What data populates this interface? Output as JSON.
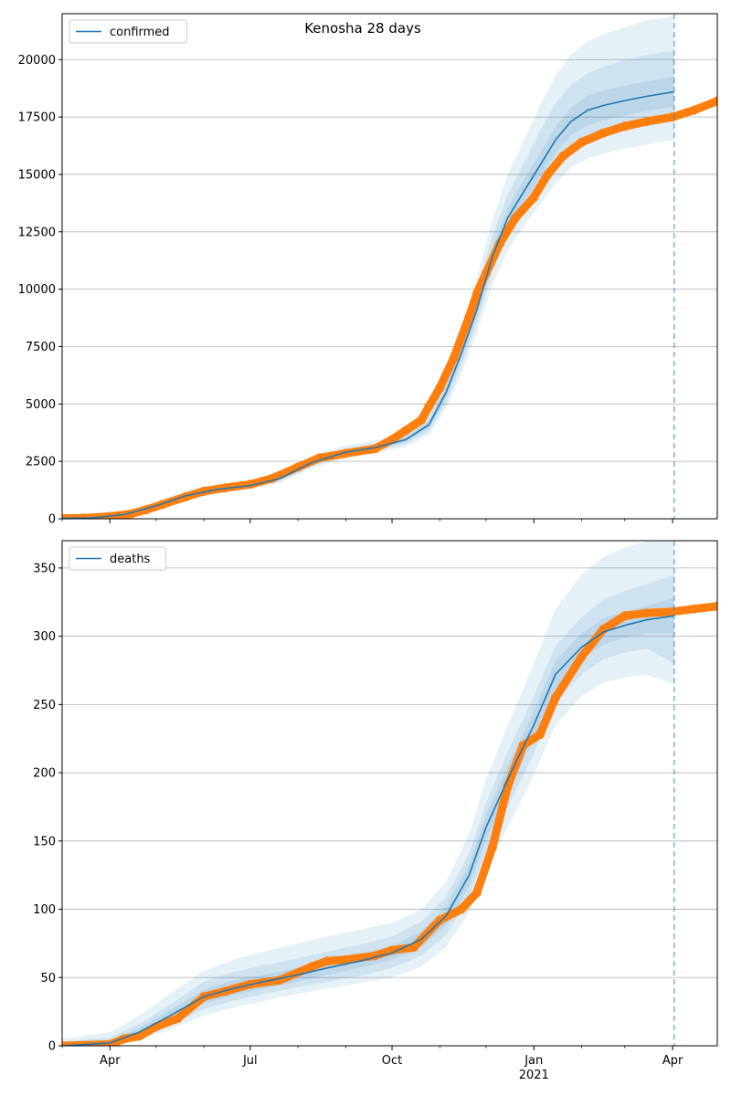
{
  "title": "Kenosha 28 days",
  "colors": {
    "model": "#1f77b4",
    "observed": "#ff7f0e",
    "band": "#1f77b4",
    "grid": "#b0b0b0",
    "forecast_line": "#1f77b4"
  },
  "chart_data": [
    {
      "type": "line",
      "legend": "confirmed",
      "legend_position": "top-left",
      "grid": "horizontal",
      "xlim": [
        "2020-03-01",
        "2021-04-30"
      ],
      "ylim": [
        0,
        22000
      ],
      "yticks": [
        0,
        2500,
        5000,
        7500,
        10000,
        12500,
        15000,
        17500,
        20000
      ],
      "forecast_start": "2021-04-02",
      "model": {
        "dates": [
          "2020-03-01",
          "2020-03-20",
          "2020-04-10",
          "2020-05-01",
          "2020-05-20",
          "2020-06-10",
          "2020-07-01",
          "2020-07-20",
          "2020-08-10",
          "2020-09-01",
          "2020-09-20",
          "2020-10-10",
          "2020-10-25",
          "2020-11-05",
          "2020-11-15",
          "2020-11-25",
          "2020-12-05",
          "2020-12-15",
          "2020-12-25",
          "2021-01-05",
          "2021-01-15",
          "2021-01-25",
          "2021-02-05",
          "2021-02-15",
          "2021-02-28",
          "2021-03-15",
          "2021-04-02"
        ],
        "values": [
          20,
          40,
          180,
          560,
          1000,
          1280,
          1450,
          1750,
          2450,
          2900,
          3100,
          3450,
          4100,
          5500,
          7200,
          9100,
          11400,
          13100,
          14200,
          15400,
          16500,
          17300,
          17800,
          18000,
          18200,
          18400,
          18600
        ],
        "bands": [
          {
            "lower": [
              0,
              10,
              100,
              400,
              800,
              1100,
              1300,
              1550,
              2200,
              2650,
              2850,
              3150,
              3650,
              4800,
              6300,
              8100,
              10200,
              11700,
              12700,
              13700,
              14600,
              15300,
              15700,
              15900,
              16100,
              16300,
              16500
            ],
            "upper": [
              60,
              100,
              300,
              750,
              1250,
              1500,
              1650,
              2000,
              2750,
              3200,
              3400,
              3800,
              4600,
              6300,
              8300,
              10500,
              13000,
              15000,
              16400,
              18000,
              19300,
              20200,
              20800,
              21100,
              21400,
              21700,
              21900
            ]
          },
          {
            "lower": [
              0,
              20,
              130,
              460,
              870,
              1170,
              1350,
              1630,
              2300,
              2740,
              2940,
              3270,
              3820,
              5050,
              6650,
              8500,
              10700,
              12300,
              13300,
              14400,
              15400,
              16100,
              16500,
              16700,
              16900,
              17100,
              17300
            ],
            "upper": [
              45,
              75,
              250,
              670,
              1150,
              1420,
              1580,
              1900,
              2630,
              3080,
              3280,
              3650,
              4400,
              5950,
              7800,
              9900,
              12300,
              14100,
              15400,
              16900,
              18100,
              18900,
              19400,
              19700,
              19950,
              20200,
              20400
            ]
          },
          {
            "lower": [
              5,
              30,
              155,
              510,
              930,
              1220,
              1400,
              1690,
              2380,
              2830,
              3020,
              3360,
              3960,
              5280,
              6920,
              8800,
              11050,
              12700,
              13750,
              14900,
              15950,
              16700,
              17150,
              17350,
              17550,
              17750,
              17950
            ],
            "upper": [
              35,
              55,
              210,
              610,
              1070,
              1350,
              1510,
              1820,
              2530,
              2980,
              3180,
              3550,
              4250,
              5750,
              7500,
              9450,
              11800,
              13550,
              14700,
              15950,
              17050,
              17900,
              18450,
              18650,
              18850,
              19050,
              19250
            ]
          }
        ]
      },
      "observed": {
        "dates": [
          "2020-03-01",
          "2020-03-15",
          "2020-04-01",
          "2020-04-15",
          "2020-04-25",
          "2020-05-05",
          "2020-05-20",
          "2020-06-01",
          "2020-06-15",
          "2020-07-01",
          "2020-07-15",
          "2020-08-01",
          "2020-08-15",
          "2020-09-01",
          "2020-09-20",
          "2020-10-01",
          "2020-10-10",
          "2020-10-20",
          "2020-10-25",
          "2020-11-01",
          "2020-11-10",
          "2020-11-20",
          "2020-11-25",
          "2020-12-01",
          "2020-12-10",
          "2020-12-20",
          "2021-01-01",
          "2021-01-10",
          "2021-01-20",
          "2021-02-01",
          "2021-02-15",
          "2021-03-01",
          "2021-03-15",
          "2021-04-01",
          "2021-04-15",
          "2021-04-30"
        ],
        "values": [
          20,
          30,
          100,
          220,
          400,
          620,
          950,
          1200,
          1350,
          1500,
          1750,
          2250,
          2650,
          2850,
          3050,
          3450,
          3850,
          4300,
          4900,
          5700,
          7000,
          8800,
          9800,
          10700,
          12000,
          13100,
          14000,
          15000,
          15800,
          16400,
          16800,
          17100,
          17300,
          17500,
          17800,
          18200
        ]
      }
    },
    {
      "type": "line",
      "legend": "deaths",
      "legend_position": "top-left",
      "grid": "horizontal",
      "xlim": [
        "2020-03-01",
        "2021-04-30"
      ],
      "ylim": [
        0,
        370
      ],
      "yticks": [
        0,
        50,
        100,
        150,
        200,
        250,
        300,
        350
      ],
      "xticks": [
        {
          "date": "2020-04-01",
          "label": "Apr"
        },
        {
          "date": "2020-07-01",
          "label": "Jul"
        },
        {
          "date": "2020-10-01",
          "label": "Oct"
        },
        {
          "date": "2021-01-01",
          "label": "Jan",
          "sublabel": "2021"
        },
        {
          "date": "2021-04-01",
          "label": "Apr"
        }
      ],
      "forecast_start": "2021-04-02",
      "model": {
        "dates": [
          "2020-03-01",
          "2020-04-01",
          "2020-04-20",
          "2020-05-10",
          "2020-06-01",
          "2020-06-20",
          "2020-07-10",
          "2020-08-01",
          "2020-08-20",
          "2020-09-10",
          "2020-10-01",
          "2020-10-20",
          "2020-11-05",
          "2020-11-20",
          "2020-12-01",
          "2020-12-15",
          "2021-01-01",
          "2021-01-15",
          "2021-02-01",
          "2021-02-15",
          "2021-03-01",
          "2021-03-15",
          "2021-04-02"
        ],
        "values": [
          0,
          2,
          10,
          22,
          36,
          42,
          47,
          52,
          57,
          62,
          68,
          78,
          95,
          125,
          160,
          195,
          235,
          272,
          292,
          303,
          308,
          312,
          315
        ],
        "bands": [
          {
            "lower": [
              0,
              0,
              4,
              12,
              22,
              28,
              33,
              38,
              42,
              46,
              50,
              58,
              72,
              98,
              128,
              160,
              198,
              235,
              256,
              266,
              270,
              272,
              265
            ],
            "upper": [
              5,
              10,
              22,
              38,
              55,
              63,
              69,
              75,
              80,
              85,
              90,
              100,
              120,
              155,
              195,
              235,
              280,
              320,
              345,
              358,
              365,
              370,
              370
            ]
          },
          {
            "lower": [
              0,
              1,
              6,
              15,
              27,
              33,
              38,
              43,
              47,
              51,
              57,
              66,
              81,
              109,
              142,
              175,
              214,
              252,
              272,
              283,
              288,
              291,
              280
            ],
            "upper": [
              3,
              6,
              16,
              30,
              47,
              54,
              59,
              64,
              69,
              74,
              80,
              91,
              109,
              141,
              178,
              215,
              256,
              293,
              314,
              327,
              333,
              338,
              345
            ]
          },
          {
            "lower": [
              0,
              1,
              8,
              18,
              31,
              37,
              42,
              47,
              52,
              57,
              63,
              72,
              88,
              117,
              151,
              185,
              225,
              262,
              283,
              294,
              299,
              302,
              302
            ],
            "upper": [
              2,
              4,
              13,
              26,
              41,
              48,
              52,
              57,
              62,
              67,
              73,
              84,
              102,
              133,
              169,
              205,
              245,
              282,
              302,
              313,
              318,
              322,
              328
            ]
          }
        ]
      },
      "observed": {
        "dates": [
          "2020-03-01",
          "2020-04-01",
          "2020-04-10",
          "2020-04-20",
          "2020-05-01",
          "2020-05-15",
          "2020-06-01",
          "2020-06-15",
          "2020-07-01",
          "2020-07-20",
          "2020-08-10",
          "2020-08-20",
          "2020-09-01",
          "2020-09-20",
          "2020-10-01",
          "2020-10-15",
          "2020-11-01",
          "2020-11-15",
          "2020-11-25",
          "2020-12-05",
          "2020-12-15",
          "2020-12-25",
          "2021-01-05",
          "2021-01-15",
          "2021-02-01",
          "2021-02-15",
          "2021-03-01",
          "2021-03-15",
          "2021-04-01",
          "2021-04-15",
          "2021-04-30"
        ],
        "values": [
          0,
          1,
          5,
          7,
          14,
          20,
          36,
          40,
          45,
          48,
          58,
          62,
          63,
          66,
          70,
          72,
          92,
          100,
          112,
          145,
          190,
          220,
          228,
          255,
          285,
          305,
          315,
          317,
          318,
          320,
          322
        ]
      }
    }
  ]
}
